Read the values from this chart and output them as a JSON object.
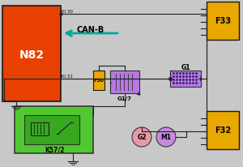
{
  "bg_color": "#c8c8c8",
  "n82_color": "#e84000",
  "f33_color": "#e8a800",
  "f32_color": "#e8a800",
  "f30_color": "#e8a800",
  "g1_color": "#b878e8",
  "g17_color": "#b878e8",
  "k572_outer": "#50c830",
  "k572_inner": "#38a820",
  "g2_color": "#e898a8",
  "m1_color": "#c888e0",
  "wire_color": "#202020",
  "canb_arrow_color": "#00a898",
  "title_n82": "N82",
  "title_f33": "F33",
  "title_f32": "F32",
  "title_f30": "F30",
  "title_g1": "G1",
  "title_g17": "G1/7",
  "title_k572": "K57/2",
  "title_g2": "G2",
  "title_m1": "M1",
  "label_kl30": "KI 30",
  "label_kl31": "KI 31",
  "label_canb": "CAN-B"
}
